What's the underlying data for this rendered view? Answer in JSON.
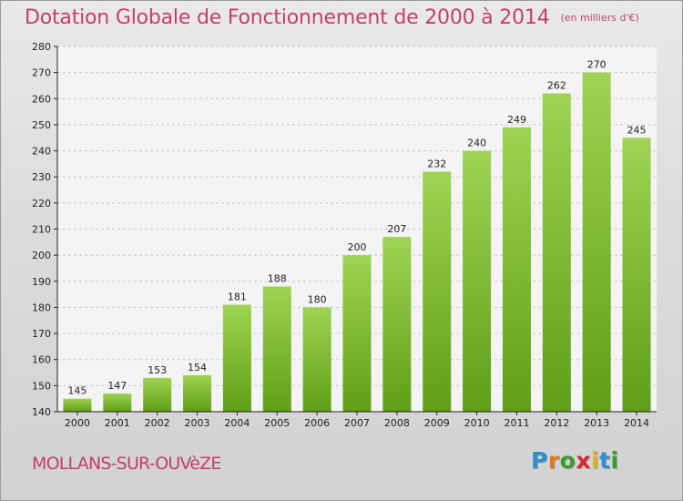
{
  "title": "Dotation Globale de Fonctionnement de 2000 à 2014",
  "subtitle": "(en milliers d'€)",
  "commune": "MOLLANS-SUR-OUVèZE",
  "logo": {
    "letters": [
      "P",
      "r",
      "o",
      "x",
      "i",
      "t",
      "i"
    ],
    "colors": [
      "#2f8fd0",
      "#e07b23",
      "#3f9a2e",
      "#d8282e",
      "#e0b21a",
      "#2f8fd0",
      "#3f9a2e"
    ]
  },
  "chart_data": {
    "type": "bar",
    "categories": [
      "2000",
      "2001",
      "2002",
      "2003",
      "2004",
      "2005",
      "2006",
      "2007",
      "2008",
      "2009",
      "2010",
      "2011",
      "2012",
      "2013",
      "2014"
    ],
    "values": [
      145,
      147,
      153,
      154,
      181,
      188,
      180,
      200,
      207,
      232,
      240,
      249,
      262,
      270,
      245
    ],
    "title": "Dotation Globale de Fonctionnement de 2000 à 2014",
    "ylim": [
      140,
      280
    ],
    "yticks": [
      140,
      150,
      160,
      170,
      180,
      190,
      200,
      210,
      220,
      230,
      240,
      250,
      260,
      270,
      280
    ],
    "grid": true,
    "bar_color": "#7cc033"
  }
}
